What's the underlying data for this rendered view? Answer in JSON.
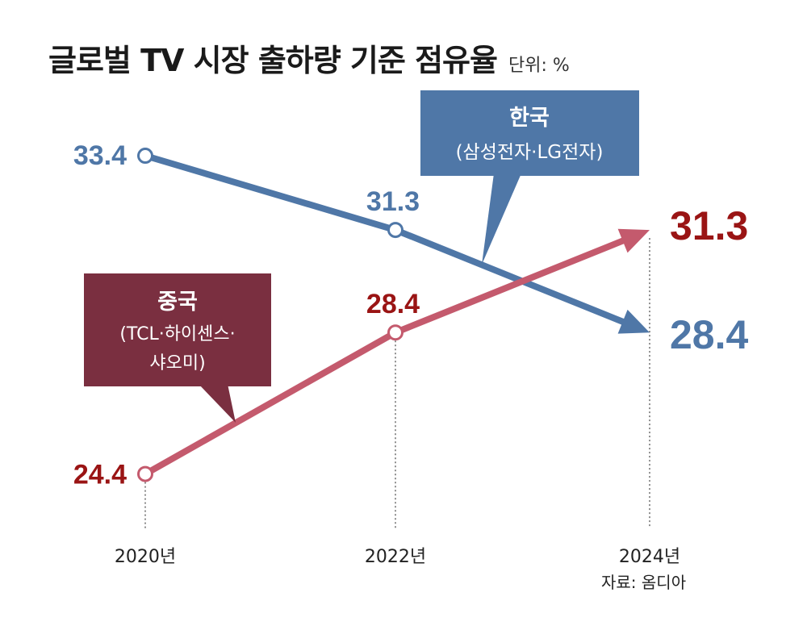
{
  "chart_data": {
    "type": "line",
    "title": "글로벌 TV 시장 출하량 기준 점유율",
    "unit": "단위: %",
    "source": "자료: 옴디아",
    "categories": [
      "2020년",
      "2022년",
      "2024년"
    ],
    "series": [
      {
        "name": "한국",
        "members": "(삼성전자·LG전자)",
        "values": [
          33.4,
          31.3,
          28.4
        ],
        "color": "#4f77a7",
        "label_color": "#4f77a7",
        "box_color": "#4f77a7"
      },
      {
        "name": "중국",
        "members_line1": "(TCL·하이센스·",
        "members_line2": "샤오미)",
        "values": [
          24.4,
          28.4,
          31.3
        ],
        "color": "#c45a6d",
        "label_color": "#9a1414",
        "box_color": "#7a2f40"
      }
    ],
    "value_labels": [
      "33.4",
      "31.3",
      "28.4",
      "24.4",
      "28.4",
      "31.3"
    ]
  }
}
